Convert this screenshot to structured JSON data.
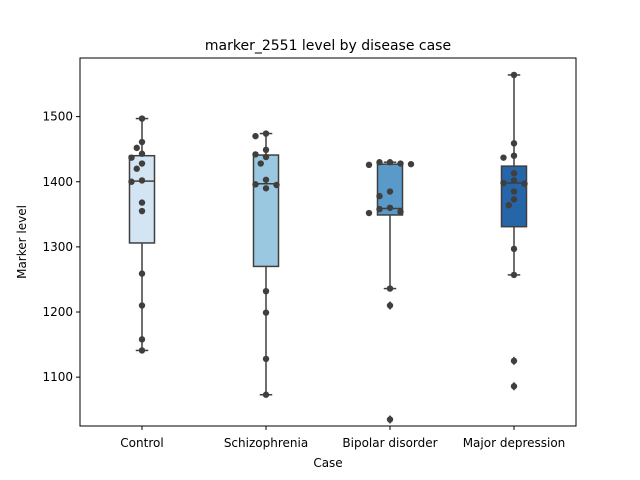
{
  "chart_data": {
    "type": "box",
    "title": "marker_2551 level by disease case",
    "xlabel": "Case",
    "ylabel": "Marker level",
    "ylim": [
      1025,
      1590
    ],
    "yticks": [
      1100,
      1200,
      1300,
      1400,
      1500
    ],
    "grid": false,
    "legend": "none",
    "categories": [
      "Control",
      "Schizophrenia",
      "Bipolar disorder",
      "Major depression"
    ],
    "box_colors": [
      "#d3e4f3",
      "#9ac8e0",
      "#5a9ac9",
      "#2565a8"
    ],
    "boxes": [
      {
        "whisker_low": 1141,
        "q1": 1306,
        "median": 1401,
        "q3": 1440,
        "whisker_high": 1497,
        "fliers": []
      },
      {
        "whisker_low": 1073,
        "q1": 1270,
        "median": 1397,
        "q3": 1441,
        "whisker_high": 1474,
        "fliers": []
      },
      {
        "whisker_low": 1236,
        "q1": 1349,
        "median": 1359,
        "q3": 1427,
        "whisker_high": 1430,
        "fliers": [
          1210,
          1035
        ]
      },
      {
        "whisker_low": 1257,
        "q1": 1331,
        "median": 1398,
        "q3": 1424,
        "whisker_high": 1564,
        "fliers": [
          1125,
          1086
        ]
      }
    ],
    "points": [
      [
        1497,
        1461,
        1452,
        1443,
        1437,
        1428,
        1420,
        1402,
        1400,
        1368,
        1355,
        1259,
        1210,
        1158,
        1141
      ],
      [
        1474,
        1470,
        1449,
        1442,
        1438,
        1428,
        1403,
        1396,
        1390,
        1395,
        1232,
        1199,
        1128,
        1073
      ],
      [
        1430,
        1430,
        1428,
        1426,
        1427,
        1385,
        1378,
        1360,
        1358,
        1354,
        1352,
        1236,
        1210,
        1035
      ],
      [
        1564,
        1459,
        1440,
        1437,
        1413,
        1402,
        1398,
        1397,
        1385,
        1373,
        1364,
        1297,
        1257,
        1125,
        1086
      ]
    ]
  }
}
